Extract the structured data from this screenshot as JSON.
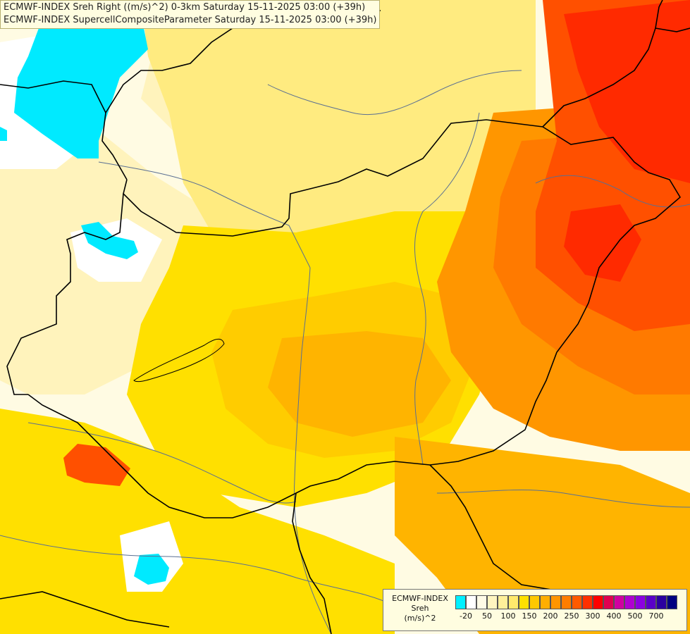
{
  "title_lines": [
    "ECMWF-INDEX Sreh Right ((m/s)^2) 0-3km Saturday 15-11-2025 03:00 (+39h)",
    "ECMWF-INDEX SupercellCompositeParameter Saturday 15-11-2025 03:00 (+39h)"
  ],
  "legend": {
    "title_lines": [
      "ECMWF-INDEX",
      "Sreh",
      "(m/s)^2"
    ],
    "colors": [
      "#00f0ff",
      "#ffffff",
      "#fffbe6",
      "#fff5c0",
      "#fff09a",
      "#ffe96c",
      "#ffe000",
      "#ffc800",
      "#ffae00",
      "#ff9500",
      "#ff7d00",
      "#ff5a00",
      "#ff3000",
      "#ff0000",
      "#e00050",
      "#d000a0",
      "#b000d0",
      "#8c00e0",
      "#5a00c8",
      "#2a00a0",
      "#000080"
    ],
    "ticks": [
      "-20",
      "50",
      "100",
      "150",
      "200",
      "250",
      "300",
      "400",
      "500",
      "700"
    ]
  },
  "map": {
    "colors": {
      "background": "#fffbe3",
      "cyan": "#00eaff",
      "white": "#ffffff",
      "level_1": "#fff3bc",
      "level_2": "#ffeb80",
      "level_3": "#ffe000",
      "level_4": "#ffcc00",
      "level_5": "#ffb400",
      "level_6": "#ff9600",
      "level_7": "#ff7a00",
      "level_8": "#ff5000",
      "level_9": "#ff2a00",
      "border": "#000000",
      "river": "#5a6f92"
    }
  }
}
